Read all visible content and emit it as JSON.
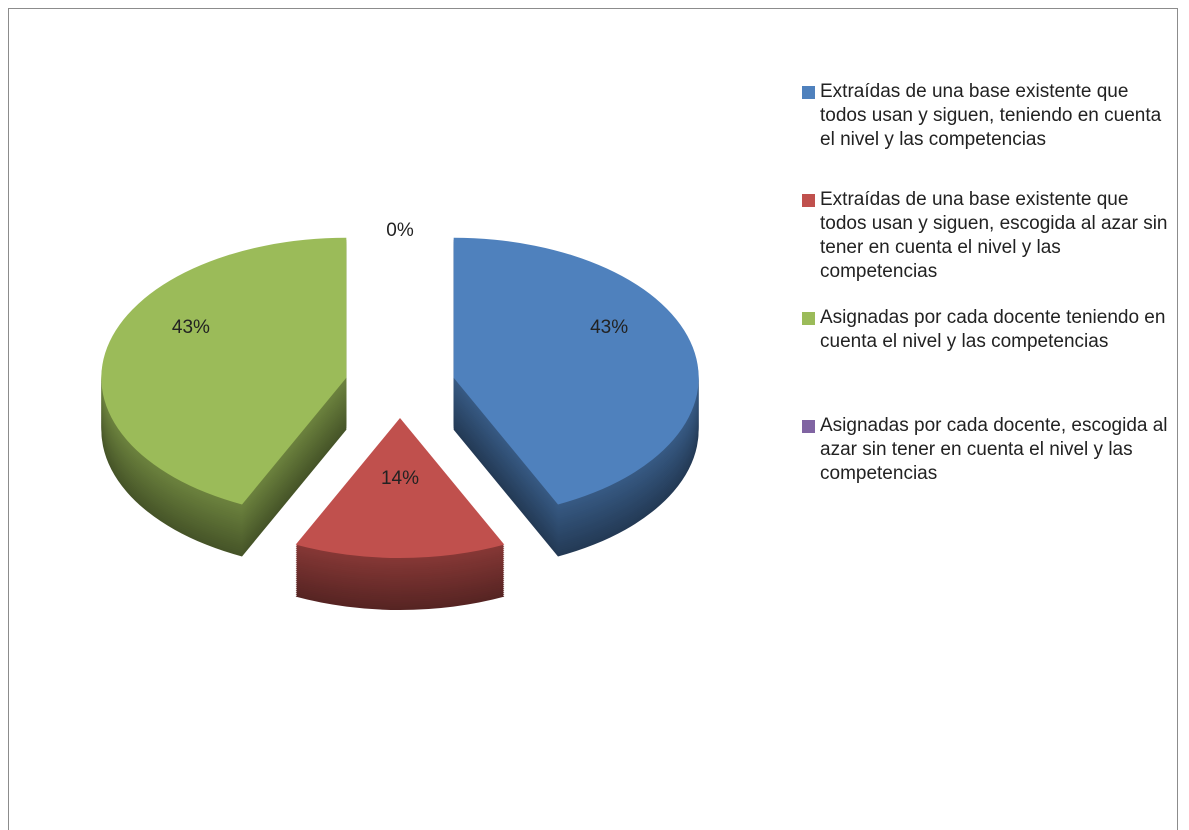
{
  "chart_data": {
    "type": "pie",
    "three_d": true,
    "exploded": true,
    "categories": [
      "Extraídas de una base existente que todos usan y siguen, teniendo en cuenta el nivel y las competencias",
      "Extraídas de una base existente que todos usan y siguen, escogida al azar sin tener en cuenta el nivel y las competencias",
      "Asignadas por cada docente teniendo en cuenta el nivel y las competencias",
      "Asignadas por cada docente, escogida al azar sin tener en cuenta el nivel y las competencias"
    ],
    "values": [
      43,
      14,
      43,
      0
    ],
    "value_labels": [
      "43%",
      "14%",
      "43%",
      "0%"
    ],
    "colors": [
      "#4f81bd",
      "#c0504d",
      "#9bbb59",
      "#8064a2"
    ],
    "legend": "right"
  }
}
